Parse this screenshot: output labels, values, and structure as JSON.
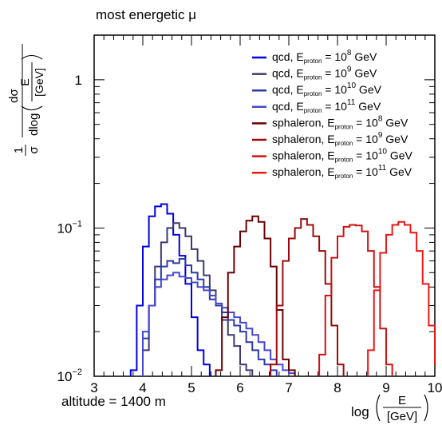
{
  "chart_data": {
    "type": "histogram",
    "title": "most energetic μ",
    "annotation": "altitude = 1400 m",
    "xlabel": {
      "prefix": "log",
      "num": "E",
      "den": "[GeV]"
    },
    "ylabel": {
      "one": "1",
      "sigma": "σ",
      "dsigma": "dσ",
      "dlog": "dlog",
      "num": "E",
      "den": "[GeV]"
    },
    "xlim": [
      3,
      10
    ],
    "ylim": [
      0.01,
      2
    ],
    "yscale": "log",
    "x_ticks": [
      "3",
      "4",
      "5",
      "6",
      "7",
      "8",
      "9",
      "10"
    ],
    "y_ticks": [
      {
        "value": 0.01,
        "base": "10",
        "exp": "−2"
      },
      {
        "value": 0.1,
        "base": "10",
        "exp": "−1"
      },
      {
        "value": 1,
        "base": "1",
        "exp": ""
      }
    ],
    "legend_position": "top-right",
    "bin_width": 0.125,
    "series": [
      {
        "process": "qcd",
        "subscript": "proton",
        "energy_base": "10",
        "energy_exp": "8",
        "unit": "GeV",
        "color": "#0000e0",
        "x_start": 3.75,
        "values": [
          0.011,
          0.03,
          0.075,
          0.12,
          0.14,
          0.145,
          0.125,
          0.09,
          0.065,
          0.042,
          0.025,
          0.015,
          0.012
        ]
      },
      {
        "process": "qcd",
        "subscript": "proton",
        "energy_base": "10",
        "energy_exp": "9",
        "unit": "GeV",
        "color": "#3a3a72",
        "x_start": 4.0,
        "values": [
          0.015,
          0.03,
          0.055,
          0.08,
          0.1,
          0.108,
          0.1,
          0.088,
          0.072,
          0.06,
          0.048,
          0.038,
          0.03,
          0.024,
          0.019,
          0.016,
          0.012,
          0.011
        ]
      },
      {
        "process": "qcd",
        "subscript": "proton",
        "energy_base": "10",
        "energy_exp": "10",
        "unit": "GeV",
        "color": "#2b3aa8",
        "x_start": 4.0,
        "values": [
          0.018,
          0.03,
          0.045,
          0.055,
          0.06,
          0.058,
          0.062,
          0.056,
          0.05,
          0.045,
          0.04,
          0.033,
          0.03,
          0.027,
          0.024,
          0.022,
          0.02,
          0.017,
          0.015,
          0.013,
          0.012,
          0.011
        ]
      },
      {
        "process": "qcd",
        "subscript": "proton",
        "energy_base": "10",
        "energy_exp": "11",
        "unit": "GeV",
        "color": "#4646d0",
        "x_start": 4.0,
        "values": [
          0.02,
          0.03,
          0.04,
          0.045,
          0.048,
          0.05,
          0.047,
          0.046,
          0.043,
          0.04,
          0.038,
          0.035,
          0.031,
          0.029,
          0.027,
          0.025,
          0.023,
          0.021,
          0.019,
          0.017,
          0.015,
          0.013,
          0.012,
          0.011,
          0.0105
        ]
      },
      {
        "process": "sphaleron",
        "subscript": "proton",
        "energy_base": "10",
        "energy_exp": "8",
        "unit": "GeV",
        "color": "#6b0000",
        "x_start": 5.5,
        "values": [
          0.011,
          0.025,
          0.05,
          0.075,
          0.095,
          0.112,
          0.12,
          0.11,
          0.085,
          0.055,
          0.028,
          0.013,
          0.011
        ]
      },
      {
        "process": "sphaleron",
        "subscript": "proton",
        "energy_base": "10",
        "energy_exp": "9",
        "unit": "GeV",
        "color": "#9c0a0a",
        "x_start": 6.625,
        "values": [
          0.012,
          0.03,
          0.06,
          0.085,
          0.1,
          0.115,
          0.105,
          0.088,
          0.07,
          0.042,
          0.022,
          0.012
        ]
      },
      {
        "process": "sphaleron",
        "subscript": "proton",
        "energy_base": "10",
        "energy_exp": "10",
        "unit": "GeV",
        "color": "#cc1212",
        "x_start": 7.625,
        "values": [
          0.014,
          0.035,
          0.063,
          0.088,
          0.102,
          0.105,
          0.104,
          0.095,
          0.07,
          0.04,
          0.021,
          0.012
        ]
      },
      {
        "process": "sphaleron",
        "subscript": "proton",
        "energy_base": "10",
        "energy_exp": "11",
        "unit": "GeV",
        "color": "#ee1616",
        "x_start": 8.625,
        "values": [
          0.015,
          0.038,
          0.068,
          0.09,
          0.105,
          0.11,
          0.105,
          0.093,
          0.07,
          0.042,
          0.022,
          0.012
        ]
      }
    ]
  }
}
